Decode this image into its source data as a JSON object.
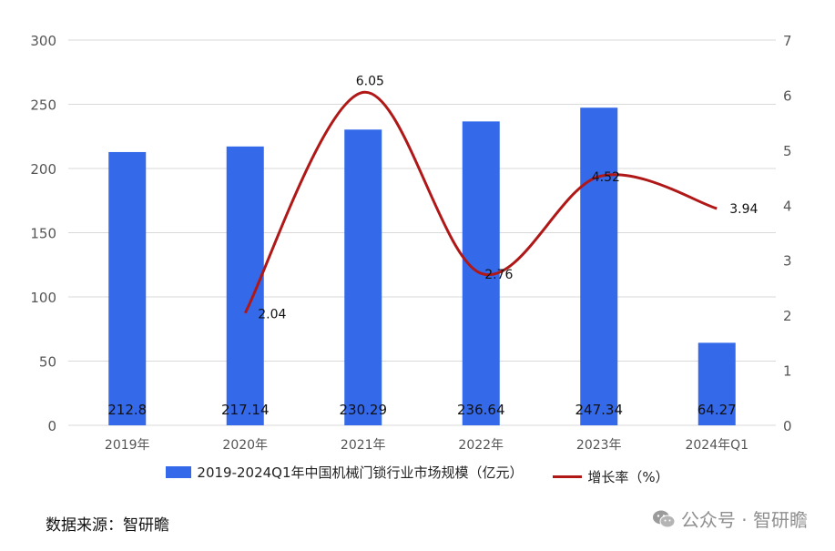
{
  "chart_data": {
    "type": "bar+line",
    "categories": [
      "2019年",
      "2020年",
      "2021年",
      "2022年",
      "2023年",
      "2024年Q1"
    ],
    "series": [
      {
        "name": "2019-2024Q1年中国机械门锁行业市场规模（亿元）",
        "type": "bar",
        "axis": "left",
        "values": [
          212.8,
          217.14,
          230.29,
          236.64,
          247.34,
          64.27
        ],
        "labels": [
          "212.8",
          "217.14",
          "230.29",
          "236.64",
          "247.34",
          "64.27"
        ],
        "color": "#3469e9"
      },
      {
        "name": "增长率（%）",
        "type": "line",
        "axis": "right",
        "values": [
          null,
          2.04,
          6.05,
          2.76,
          4.52,
          3.94
        ],
        "labels": [
          "",
          "2.04",
          "6.05",
          "2.76",
          "4.52",
          "3.94"
        ],
        "color": "#b01818"
      }
    ],
    "y_left": {
      "range": [
        0,
        300
      ],
      "ticks": [
        "0",
        "50",
        "100",
        "150",
        "200",
        "250",
        "300"
      ]
    },
    "y_right": {
      "range": [
        0,
        7
      ],
      "ticks": [
        "0",
        "1",
        "2",
        "3",
        "4",
        "5",
        "6",
        "7"
      ]
    },
    "grid": true,
    "legend_position": "bottom"
  },
  "legend": {
    "bar_label": "2019-2024Q1年中国机械门锁行业市场规模（亿元）",
    "line_label": "增长率（%）"
  },
  "source": "数据来源：智研瞻",
  "watermark": "公众号 · 智研瞻"
}
